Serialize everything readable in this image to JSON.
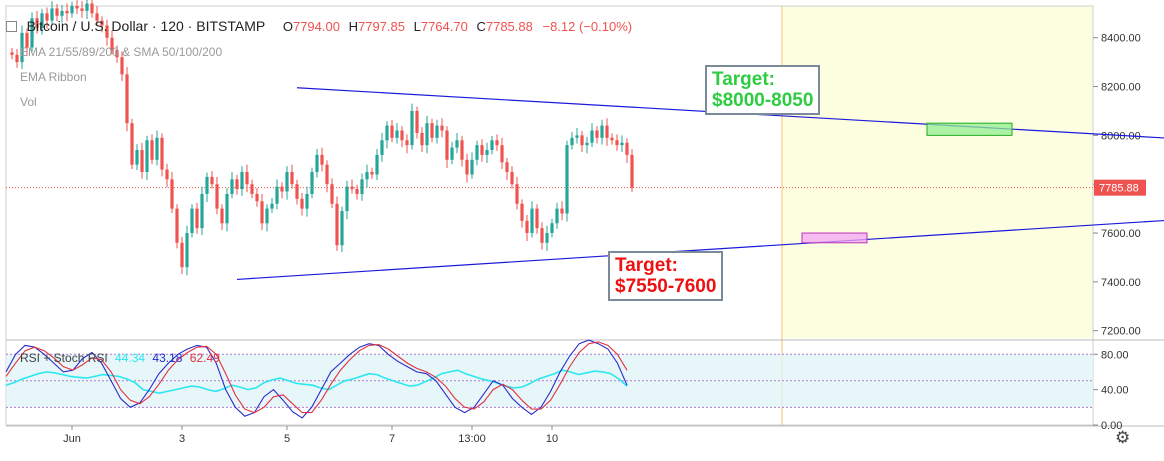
{
  "header": {
    "symbol": "Bitcoin / U.S. Dollar · 120 · BITSTAMP",
    "open_label": "O",
    "open": "7794.00",
    "high_label": "H",
    "high": "7797.85",
    "low_label": "L",
    "low": "7764.70",
    "close_label": "C",
    "close": "7785.88",
    "change": "−8.12 (−0.10%)",
    "indicator_1": "EMA 21/55/89/200 & SMA 50/100/200",
    "indicator_2": "EMA Ribbon",
    "indicator_3": "Vol"
  },
  "annotations": {
    "upper_target_label": "Target:",
    "upper_target_value": "$8000-8050",
    "lower_target_label": "Target:",
    "lower_target_value": "$7550-7600"
  },
  "colors": {
    "up": "#26a69a",
    "down": "#ef5350",
    "trendline": "#1a1adb",
    "projection_fill": "#fdfde0",
    "upper_target_text": "#2ecc40",
    "lower_target_text": "#ee1111",
    "rsi": "#2be8f0",
    "stoch_k": "#2b2bcc",
    "stoch_d": "#e03040"
  },
  "chart_data": [
    {
      "type": "candlestick",
      "title": "Bitcoin / U.S. Dollar · 120 · BITSTAMP",
      "price_scale_ticks": [
        7200,
        7400,
        7600,
        7800,
        8000,
        8200,
        8400
      ],
      "ylim": [
        7170,
        8530
      ],
      "last_price": 7785.88,
      "last_price_label": "7785.88",
      "time_labels": [
        "Jun",
        "3",
        "5",
        "7",
        "13:00",
        "10"
      ],
      "bars_total": 140,
      "candle_groups": [
        {
          "start_bar": 0,
          "close": [
            8330,
            8300,
            8420,
            8360,
            8480,
            8440,
            8500,
            8470,
            8520,
            8490,
            8510,
            8500,
            8530,
            8520,
            8510,
            8540,
            8500,
            8470,
            8450,
            8400,
            8350,
            8320,
            8250,
            8050,
            7880,
            7940,
            7850,
            7980,
            7900,
            7990,
            7860,
            7820,
            7700,
            7560,
            7460,
            7600,
            7700,
            7620,
            7760,
            7830,
            7800,
            7700,
            7640,
            7760,
            7820,
            7780,
            7850,
            7800,
            7760,
            7730,
            7640,
            7700,
            7720,
            7790,
            7770,
            7850,
            7800,
            7740,
            7700,
            7760,
            7850,
            7920,
            7880,
            7800,
            7720,
            7550,
            7690,
            7790,
            7780,
            7760,
            7820,
            7850,
            7840,
            7920,
            7980,
            8040,
            7990,
            8020,
            7980,
            7960,
            8100,
            8010,
            7960,
            8050,
            7990,
            8040,
            8020,
            7900,
            7950,
            7980,
            7900,
            7840,
            7900,
            7960,
            7920,
            7940,
            7980,
            7960,
            7890,
            7850,
            7800,
            7720,
            7650,
            7600,
            7700,
            7620,
            7560,
            7600,
            7640,
            7700,
            7680,
            7960,
            7990,
            8000,
            7960,
            7970,
            8020,
            7990,
            8040,
            7990,
            7980,
            7960,
            7970,
            7920,
            7786
          ]
        },
        {
          "note": "no data shown beyond bar 124"
        }
      ],
      "trendlines": [
        {
          "name": "upper",
          "from": {
            "bar": 57,
            "price": 8195
          },
          "to": {
            "bar": 268,
            "price": 7945
          }
        },
        {
          "name": "lower",
          "from": {
            "bar": 45,
            "price": 7410
          },
          "to": {
            "bar": 268,
            "price": 7700
          }
        }
      ],
      "target_zones": [
        {
          "name": "upper",
          "price_range": [
            8000,
            8050
          ],
          "bars": [
            183,
            200
          ],
          "color": "#90ee90"
        },
        {
          "name": "lower",
          "price_range": [
            7560,
            7600
          ],
          "bars": [
            158,
            171
          ],
          "color": "#f4a6f4"
        }
      ],
      "projection_start_bar": 154
    },
    {
      "type": "line",
      "title": "RSI + Stoch RSI",
      "legend_values": [
        "44.34",
        "43.18",
        "62.49"
      ],
      "ylim": [
        0,
        95
      ],
      "ticks": [
        "80.00",
        "40.00",
        "0.00"
      ],
      "bands": [
        20,
        80
      ],
      "series": [
        {
          "name": "RSI",
          "color": "#2be8f0",
          "values": [
            45,
            48,
            52,
            55,
            58,
            60,
            59,
            57,
            55,
            54,
            53,
            55,
            57,
            56,
            55,
            52,
            48,
            40,
            38,
            36,
            38,
            40,
            42,
            44,
            43,
            40,
            38,
            41,
            45,
            43,
            40,
            42,
            48,
            51,
            53,
            50,
            47,
            46,
            45,
            42,
            40,
            45,
            50,
            52,
            55,
            58,
            57,
            53,
            50,
            47,
            44,
            45,
            49,
            53,
            58,
            60,
            62,
            58,
            55,
            52,
            50,
            47,
            44,
            42,
            43,
            47,
            52,
            55,
            58,
            62,
            60,
            57,
            59,
            61,
            60,
            58,
            52,
            44
          ]
        },
        {
          "name": "Stoch K",
          "color": "#2b2bcc",
          "values": [
            60,
            80,
            90,
            88,
            80,
            70,
            60,
            62,
            75,
            82,
            70,
            50,
            30,
            20,
            25,
            40,
            58,
            70,
            80,
            86,
            90,
            88,
            70,
            40,
            20,
            10,
            14,
            32,
            40,
            28,
            15,
            8,
            20,
            40,
            60,
            70,
            80,
            88,
            92,
            90,
            80,
            72,
            66,
            60,
            58,
            50,
            35,
            20,
            14,
            20,
            35,
            50,
            45,
            30,
            20,
            12,
            20,
            38,
            60,
            78,
            92,
            96,
            92,
            86,
            70,
            45
          ]
        },
        {
          "name": "Stoch D",
          "color": "#e03040",
          "values": [
            55,
            70,
            84,
            88,
            84,
            76,
            66,
            62,
            68,
            76,
            74,
            60,
            40,
            28,
            24,
            32,
            46,
            62,
            74,
            82,
            88,
            89,
            80,
            58,
            34,
            18,
            14,
            20,
            32,
            34,
            24,
            14,
            14,
            28,
            46,
            62,
            74,
            84,
            90,
            91,
            86,
            78,
            70,
            64,
            60,
            54,
            44,
            30,
            20,
            18,
            26,
            40,
            46,
            40,
            28,
            18,
            18,
            28,
            46,
            66,
            82,
            92,
            94,
            90,
            80,
            62
          ]
        }
      ]
    }
  ]
}
